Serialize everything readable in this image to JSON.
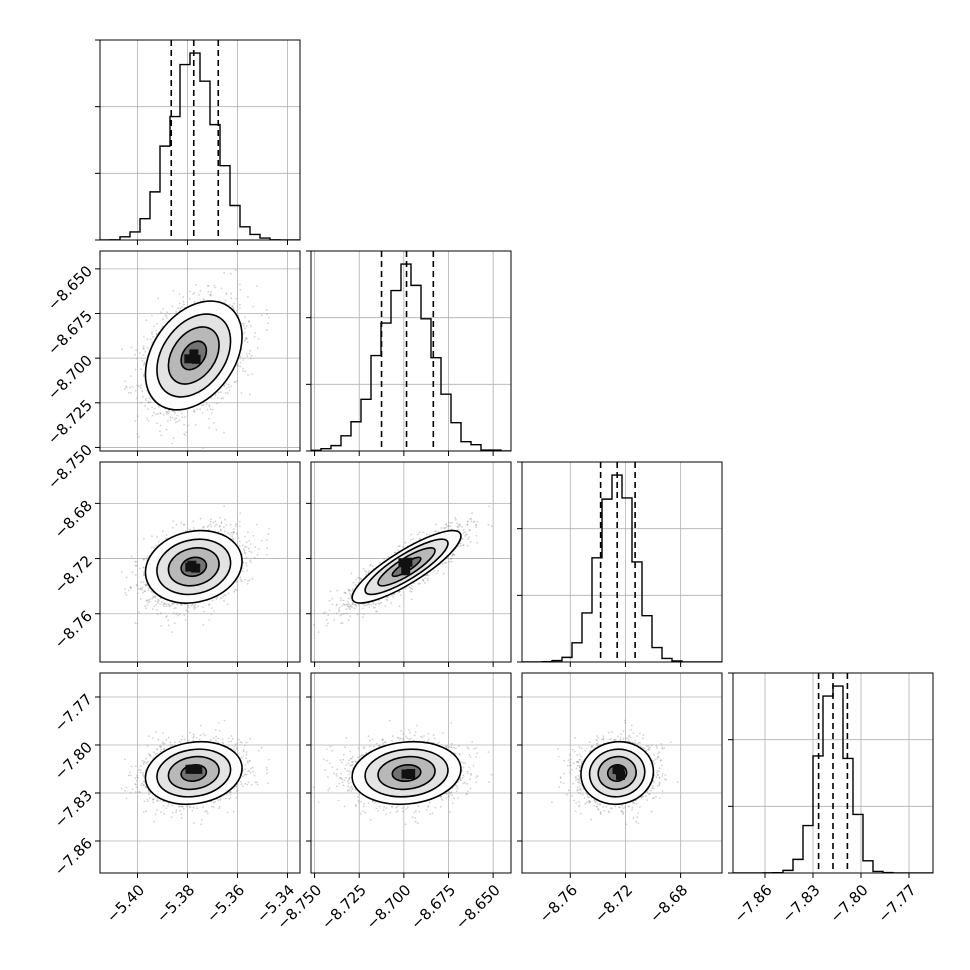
{
  "chart_data": {
    "type": "corner",
    "description_axes": "4x4 corner plot: diagonal 1D histograms with dashed quantile lines; lower triangle 2D density with contours and scatter",
    "quantiles": [
      0.16,
      0.5,
      0.84
    ],
    "grid": true,
    "parameters": [
      {
        "index": 0,
        "range": [
          -5.415,
          -5.335
        ],
        "ticks": [
          -5.4,
          -5.38,
          -5.36,
          -5.34
        ],
        "tick_labels": [
          "−5.40",
          "−5.38",
          "−5.36",
          "−5.34"
        ],
        "mean": -5.3775,
        "sigma": 0.0092,
        "quantile_values": [
          -5.3865,
          -5.3775,
          -5.3677
        ]
      },
      {
        "index": 1,
        "range": [
          -8.752,
          -8.64
        ],
        "ticks": [
          -8.75,
          -8.725,
          -8.7,
          -8.675,
          -8.65
        ],
        "tick_labels": [
          "−8.750",
          "−8.725",
          "−8.700",
          "−8.675",
          "−8.650"
        ],
        "mean": -8.6985,
        "sigma": 0.0145,
        "quantile_values": [
          -8.7125,
          -8.6985,
          -8.6835
        ]
      },
      {
        "index": 2,
        "range": [
          -8.795,
          -8.65
        ],
        "ticks": [
          -8.76,
          -8.72,
          -8.68
        ],
        "tick_labels": [
          "−8.76",
          "−8.72",
          "−8.68"
        ],
        "mean": -8.726,
        "sigma": 0.0125,
        "quantile_values": [
          -8.738,
          -8.726,
          -8.713
        ]
      },
      {
        "index": 3,
        "range": [
          -7.88,
          -7.755
        ],
        "ticks": [
          -7.86,
          -7.83,
          -7.8,
          -7.77
        ],
        "tick_labels": [
          "−7.86",
          "−7.83",
          "−7.80",
          "−7.77"
        ],
        "mean": -7.8175,
        "sigma": 0.0093,
        "quantile_values": [
          -7.8265,
          -7.8175,
          -7.8085
        ]
      }
    ],
    "correlations": {
      "1-0": 0.35,
      "2-0": 0.15,
      "2-1": 0.85,
      "3-0": 0.15,
      "3-1": 0.12,
      "3-2": 0.05
    },
    "histogram_bins": 20,
    "contour_levels": 4,
    "colors": {
      "axes": "#000000",
      "grid": "#b0b0b0",
      "scatter": "#9a9a9a",
      "density": "#000000"
    }
  }
}
